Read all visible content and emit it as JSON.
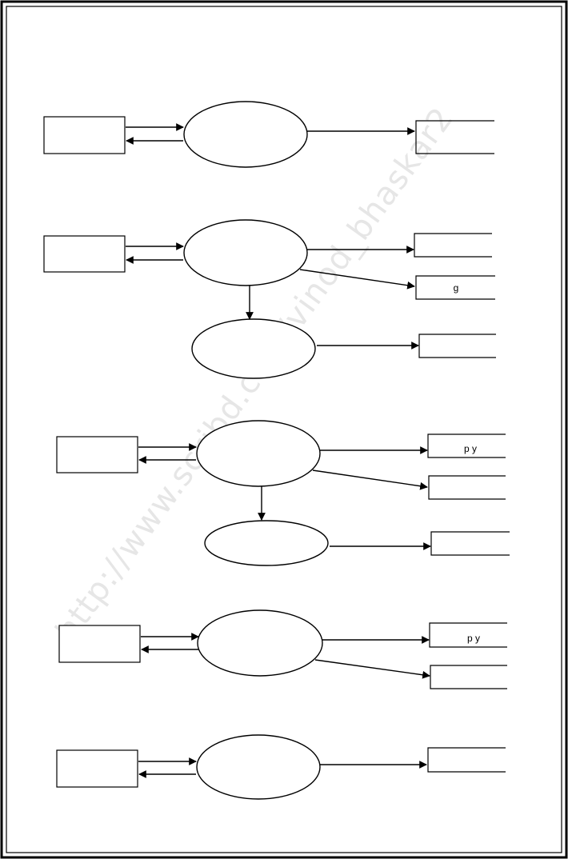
{
  "watermark": "http://www.scribd.com/vinod_bhaskar2",
  "diagrams": [
    {
      "id": "d1",
      "store_labels": [
        ""
      ]
    },
    {
      "id": "d2",
      "store_labels": [
        "",
        "g",
        ""
      ]
    },
    {
      "id": "d3",
      "store_labels": [
        "p   y",
        "",
        ""
      ]
    },
    {
      "id": "d4",
      "store_labels": [
        "p   y",
        ""
      ]
    },
    {
      "id": "d5",
      "store_labels": [
        ""
      ]
    }
  ]
}
